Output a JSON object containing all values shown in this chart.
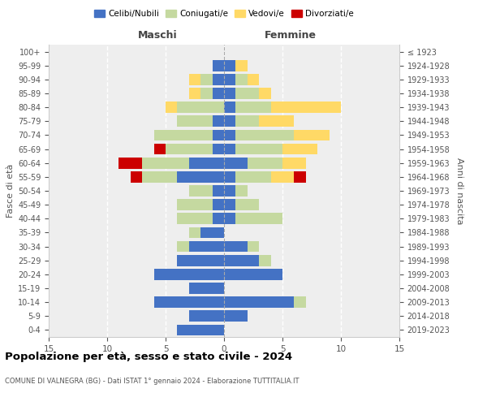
{
  "age_groups": [
    "0-4",
    "5-9",
    "10-14",
    "15-19",
    "20-24",
    "25-29",
    "30-34",
    "35-39",
    "40-44",
    "45-49",
    "50-54",
    "55-59",
    "60-64",
    "65-69",
    "70-74",
    "75-79",
    "80-84",
    "85-89",
    "90-94",
    "95-99",
    "100+"
  ],
  "birth_years": [
    "2019-2023",
    "2014-2018",
    "2009-2013",
    "2004-2008",
    "1999-2003",
    "1994-1998",
    "1989-1993",
    "1984-1988",
    "1979-1983",
    "1974-1978",
    "1969-1973",
    "1964-1968",
    "1959-1963",
    "1954-1958",
    "1949-1953",
    "1944-1948",
    "1939-1943",
    "1934-1938",
    "1929-1933",
    "1924-1928",
    "≤ 1923"
  ],
  "maschi": {
    "celibi": [
      4,
      3,
      6,
      3,
      6,
      4,
      3,
      2,
      1,
      1,
      1,
      4,
      3,
      1,
      1,
      1,
      0,
      1,
      1,
      1,
      0
    ],
    "coniugati": [
      0,
      0,
      0,
      0,
      0,
      0,
      1,
      1,
      3,
      3,
      2,
      3,
      4,
      4,
      5,
      3,
      4,
      1,
      1,
      0,
      0
    ],
    "vedovi": [
      0,
      0,
      0,
      0,
      0,
      0,
      0,
      0,
      0,
      0,
      0,
      0,
      0,
      0,
      0,
      0,
      1,
      1,
      1,
      0,
      0
    ],
    "divorziati": [
      0,
      0,
      0,
      0,
      0,
      0,
      0,
      0,
      0,
      0,
      0,
      1,
      2,
      1,
      0,
      0,
      0,
      0,
      0,
      0,
      0
    ]
  },
  "femmine": {
    "nubili": [
      0,
      2,
      6,
      0,
      5,
      3,
      2,
      0,
      1,
      1,
      1,
      1,
      2,
      1,
      1,
      1,
      1,
      1,
      1,
      1,
      0
    ],
    "coniugate": [
      0,
      0,
      1,
      0,
      0,
      1,
      1,
      0,
      4,
      2,
      1,
      3,
      3,
      4,
      5,
      2,
      3,
      2,
      1,
      0,
      0
    ],
    "vedove": [
      0,
      0,
      0,
      0,
      0,
      0,
      0,
      0,
      0,
      0,
      0,
      2,
      2,
      3,
      3,
      3,
      6,
      1,
      1,
      1,
      0
    ],
    "divorziate": [
      0,
      0,
      0,
      0,
      0,
      0,
      0,
      0,
      0,
      0,
      0,
      1,
      0,
      0,
      0,
      0,
      0,
      0,
      0,
      0,
      0
    ]
  },
  "colors": {
    "celibi_nubili": "#4472C4",
    "coniugati": "#c5d9a0",
    "vedovi": "#ffd966",
    "divorziati": "#cc0000"
  },
  "xlim": 15,
  "title": "Popolazione per età, sesso e stato civile - 2024",
  "subtitle": "COMUNE DI VALNEGRA (BG) - Dati ISTAT 1° gennaio 2024 - Elaborazione TUTTITALIA.IT",
  "ylabel": "Fasce di età",
  "ylabel_right": "Anni di nascita",
  "label_maschi": "Maschi",
  "label_femmine": "Femmine",
  "legend_labels": [
    "Celibi/Nubili",
    "Coniugati/e",
    "Vedovi/e",
    "Divorziati/e"
  ]
}
